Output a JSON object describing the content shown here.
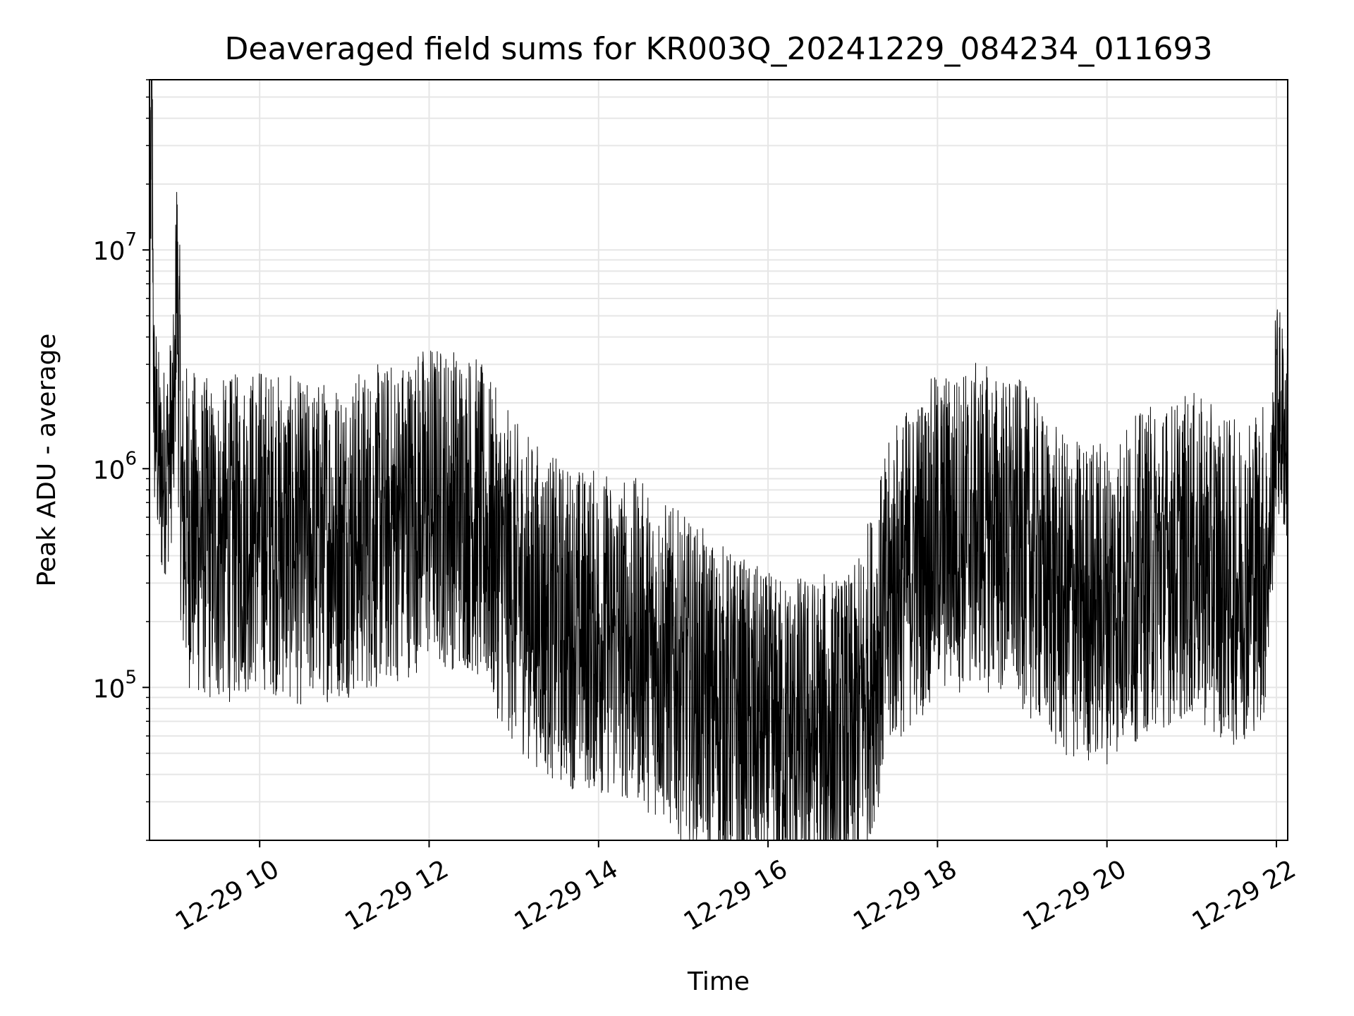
{
  "chart_data": {
    "type": "line",
    "title": "Deaveraged field sums for KR003Q_20241229_084234_011693",
    "xlabel": "Time",
    "ylabel": "Peak ADU - average",
    "yscale": "log",
    "xlim": [
      "12-29 08:42",
      "12-29 22:08"
    ],
    "ylim": [
      20000,
      60000000
    ],
    "grid": true,
    "line_color": "#000000",
    "x_ticks": [
      "12-29 10",
      "12-29 12",
      "12-29 14",
      "12-29 16",
      "12-29 18",
      "12-29 20",
      "12-29 22"
    ],
    "y_ticks": [
      {
        "base": "10",
        "exp": "5"
      },
      {
        "base": "10",
        "exp": "6"
      },
      {
        "base": "10",
        "exp": "7"
      }
    ],
    "series": [
      {
        "comment_values_are_approximate_envelope": true,
        "x": [
          "12-29 08:42",
          "12-29 08:43",
          "12-29 08:44",
          "12-29 08:45",
          "12-29 08:50",
          "12-29 08:55",
          "12-29 09:00",
          "12-29 09:01",
          "12-29 09:05",
          "12-29 09:15",
          "12-29 09:30",
          "12-29 10:00",
          "12-29 10:30",
          "12-29 11:00",
          "12-29 11:30",
          "12-29 12:00",
          "12-29 12:30",
          "12-29 13:00",
          "12-29 13:30",
          "12-29 14:00",
          "12-29 14:30",
          "12-29 15:00",
          "12-29 15:30",
          "12-29 16:00",
          "12-29 16:30",
          "12-29 17:00",
          "12-29 17:30",
          "12-29 18:00",
          "12-29 18:30",
          "12-29 19:00",
          "12-29 19:30",
          "12-29 20:00",
          "12-29 20:30",
          "12-29 21:00",
          "12-29 21:30",
          "12-29 21:55",
          "12-29 22:00",
          "12-29 22:05",
          "12-29 22:08"
        ],
        "y": [
          600000,
          45000000,
          40000000,
          2000000,
          900000,
          1100000,
          1800000,
          11000000,
          600000,
          500000,
          450000,
          550000,
          450000,
          500000,
          550000,
          700000,
          650000,
          300000,
          200000,
          180000,
          160000,
          110000,
          80000,
          60000,
          60000,
          60000,
          300000,
          500000,
          550000,
          450000,
          250000,
          250000,
          350000,
          400000,
          300000,
          400000,
          2000000,
          1500000,
          1200000
        ]
      }
    ]
  }
}
